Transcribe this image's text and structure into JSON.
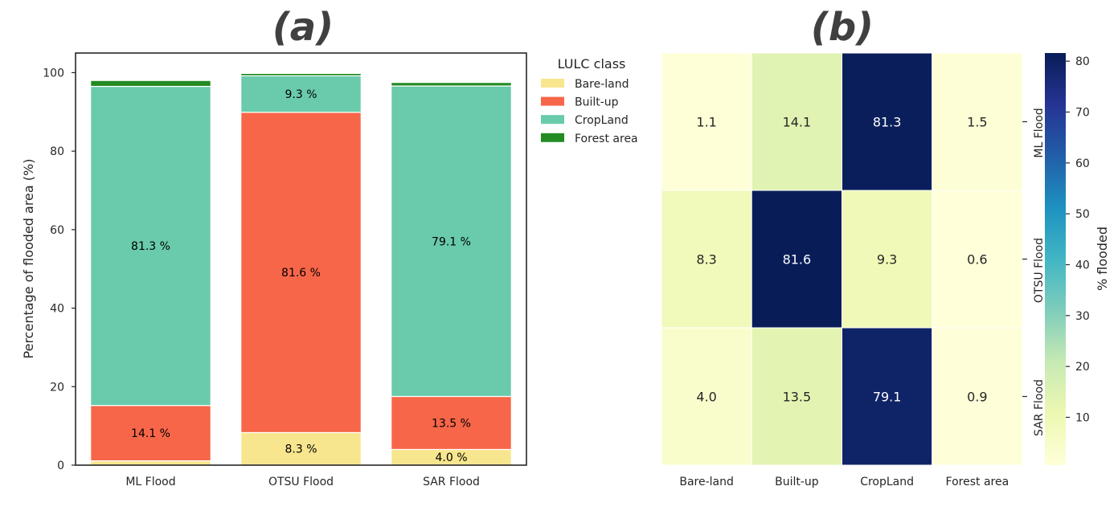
{
  "chart_data": [
    {
      "type": "bar",
      "stacked": true,
      "panel_title": "(a)",
      "categories": [
        "ML Flood",
        "OTSU Flood",
        "SAR Flood"
      ],
      "series": [
        {
          "name": "Bare-land",
          "values": [
            1.1,
            8.3,
            4.0
          ],
          "color": "#f7e68e"
        },
        {
          "name": "Built-up",
          "values": [
            14.1,
            81.6,
            13.5
          ],
          "color": "#f76649"
        },
        {
          "name": "CropLand",
          "values": [
            81.3,
            9.3,
            79.1
          ],
          "color": "#69cbab"
        },
        {
          "name": "Forest area",
          "values": [
            1.5,
            0.6,
            0.9
          ],
          "color": "#228b22"
        }
      ],
      "bar_labels": [
        {
          "category": "ML Flood",
          "series": "Built-up",
          "text": "14.1 %"
        },
        {
          "category": "ML Flood",
          "series": "CropLand",
          "text": "81.3 %"
        },
        {
          "category": "OTSU Flood",
          "series": "Bare-land",
          "text": "8.3 %"
        },
        {
          "category": "OTSU Flood",
          "series": "Built-up",
          "text": "81.6 %"
        },
        {
          "category": "OTSU Flood",
          "series": "CropLand",
          "text": "9.3 %"
        },
        {
          "category": "SAR Flood",
          "series": "Bare-land",
          "text": "4.0 %"
        },
        {
          "category": "SAR Flood",
          "series": "Built-up",
          "text": "13.5 %"
        },
        {
          "category": "SAR Flood",
          "series": "CropLand",
          "text": "79.1 %"
        }
      ],
      "ylabel": "Percentage of flooded area (%)",
      "xlabel": "",
      "ylim": [
        0,
        105
      ],
      "yticks": [
        0,
        20,
        40,
        60,
        80,
        100
      ],
      "legend_title": "LULC class",
      "legend_position": "outside top-right",
      "grid": false
    },
    {
      "type": "heatmap",
      "panel_title": "(b)",
      "columns": [
        "Bare-land",
        "Built-up",
        "CropLand",
        "Forest area"
      ],
      "rows": [
        "ML Flood",
        "OTSU Flood",
        "SAR Flood"
      ],
      "values": [
        [
          1.1,
          14.1,
          81.3,
          1.5
        ],
        [
          8.3,
          81.6,
          9.3,
          0.6
        ],
        [
          4.0,
          13.5,
          79.1,
          0.9
        ]
      ],
      "value_labels": [
        [
          "1.1",
          "14.1",
          "81.3",
          "1.5"
        ],
        [
          "8.3",
          "81.6",
          "9.3",
          "0.6"
        ],
        [
          "4.0",
          "13.5",
          "79.1",
          "0.9"
        ]
      ],
      "colorbar_label": "% flooded",
      "colorbar_range": [
        0.6,
        81.6
      ],
      "colorbar_ticks": [
        10,
        20,
        30,
        40,
        50,
        60,
        70,
        80
      ],
      "colormap": "YlGnBu",
      "row_labels_side": "right"
    }
  ]
}
